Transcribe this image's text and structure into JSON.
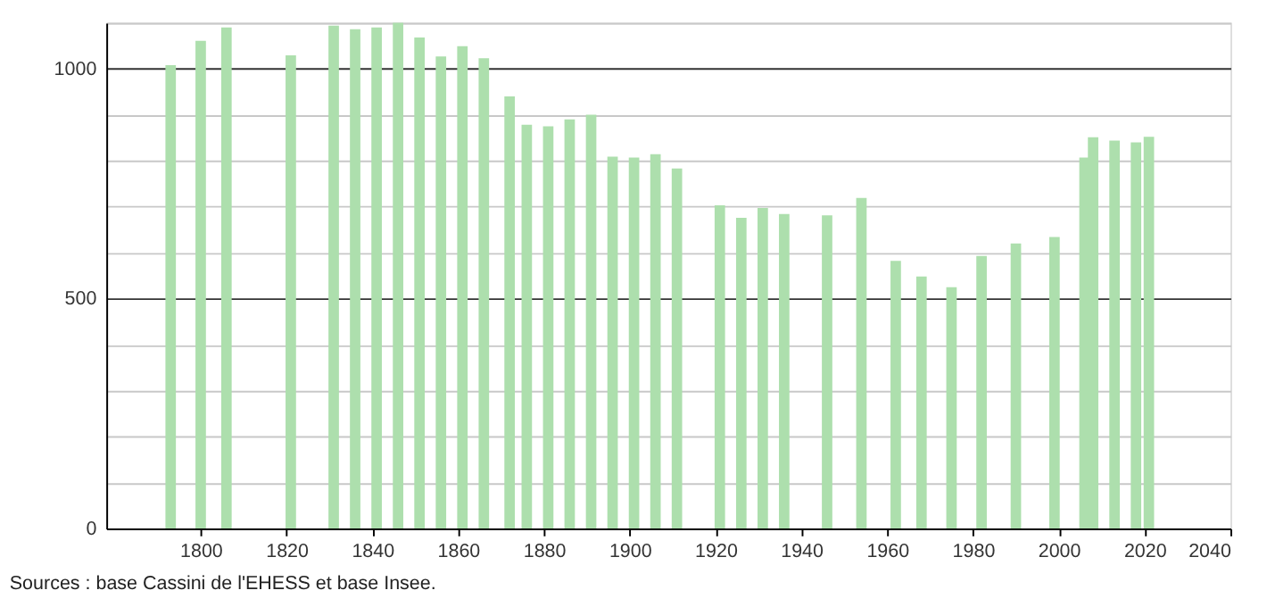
{
  "chart_data": {
    "type": "bar",
    "color": "#addfad",
    "x": [
      1793,
      1800,
      1806,
      1821,
      1831,
      1836,
      1841,
      1846,
      1851,
      1856,
      1861,
      1866,
      1872,
      1876,
      1881,
      1886,
      1891,
      1896,
      1901,
      1906,
      1911,
      1921,
      1926,
      1931,
      1936,
      1946,
      1954,
      1962,
      1968,
      1975,
      1982,
      1990,
      1999,
      2006,
      2008,
      2013,
      2018,
      2021
    ],
    "values": [
      1008,
      1061,
      1090,
      1029,
      1094,
      1086,
      1090,
      1100,
      1068,
      1027,
      1049,
      1023,
      940,
      878,
      875,
      890,
      900,
      809,
      807,
      814,
      783,
      703,
      676,
      697,
      684,
      681,
      719,
      582,
      548,
      525,
      593,
      620,
      634,
      807,
      851,
      844,
      840,
      852
    ],
    "xlim": [
      1778,
      2040
    ],
    "xticks": [
      1800,
      1820,
      1840,
      1860,
      1880,
      1900,
      1920,
      1940,
      1960,
      1980,
      2000,
      2020,
      2040
    ],
    "ylim": [
      0,
      1100
    ],
    "yticks": [
      0,
      {
        "value": 100,
        "label": null
      },
      {
        "value": 200,
        "label": null
      },
      {
        "value": 300,
        "label": null
      },
      {
        "value": 400,
        "label": null
      },
      500,
      {
        "value": 600,
        "label": null
      },
      {
        "value": 700,
        "label": null
      },
      {
        "value": 800,
        "label": null
      },
      {
        "value": 900,
        "label": null
      },
      1000,
      {
        "value": 1100,
        "label": null
      }
    ],
    "grid": "y",
    "annotations": [
      "Sources : base Cassini de l'EHESS et base Insee."
    ]
  }
}
